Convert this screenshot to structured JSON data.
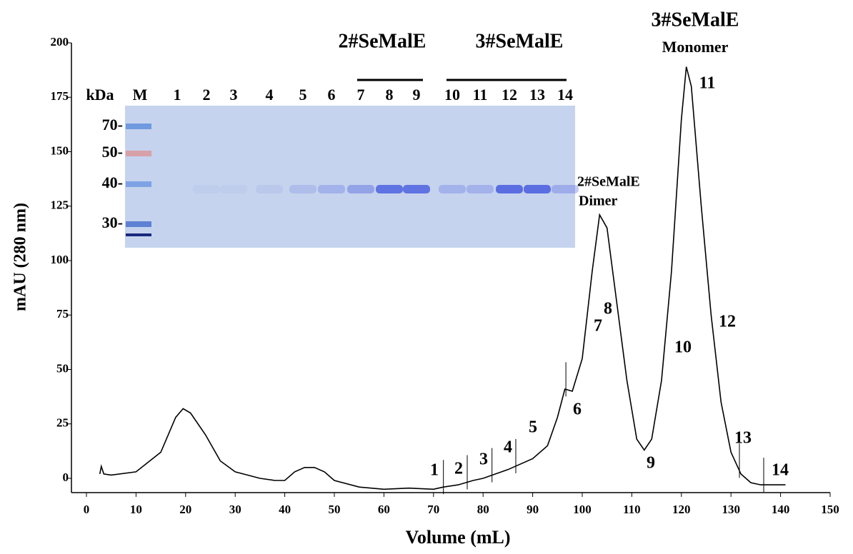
{
  "chart_data": {
    "type": "line",
    "xlabel": "Volume (mL)",
    "ylabel": "mAU (280 nm)",
    "xlim": [
      0,
      150
    ],
    "xticks": [
      0,
      10,
      20,
      30,
      40,
      50,
      60,
      70,
      80,
      90,
      100,
      110,
      120,
      130,
      140,
      150
    ],
    "ylim": [
      0,
      200
    ],
    "yticks": [
      0,
      25,
      50,
      75,
      100,
      125,
      150,
      175,
      200
    ],
    "color": "#000000",
    "x": [
      2.7,
      3.0,
      3.5,
      5,
      10,
      15,
      18,
      19.5,
      21,
      24,
      27,
      30,
      35,
      38,
      40,
      42,
      44,
      46,
      48,
      50,
      55,
      60,
      65,
      70,
      72,
      75,
      78,
      80,
      85,
      90,
      93,
      95,
      96.5,
      98,
      100,
      102,
      103.5,
      105,
      107,
      109,
      111,
      112.5,
      114,
      116,
      118,
      120,
      121,
      122,
      124,
      126,
      128,
      130,
      132,
      134,
      136,
      141
    ],
    "values": [
      2,
      5.5,
      2,
      1.5,
      3,
      12,
      28,
      32,
      30,
      20,
      8,
      3,
      0,
      -1,
      -1,
      3,
      5,
      5,
      3,
      -1,
      -4,
      -5,
      -4.5,
      -5,
      -4,
      -3,
      -1,
      0,
      4,
      9,
      15,
      28,
      41,
      40,
      55,
      95,
      121,
      115,
      80,
      45,
      18,
      13,
      18,
      45,
      95,
      165,
      189,
      180,
      125,
      75,
      35,
      12,
      2,
      -2,
      -3,
      -3
    ],
    "fraction_labels": [
      "1",
      "2",
      "3",
      "4",
      "5",
      "6",
      "7",
      "8",
      "9",
      "10",
      "11",
      "12",
      "13",
      "14"
    ],
    "fraction_marks": [
      72,
      76.8,
      81.8,
      86.6,
      96.7,
      131.7,
      136.6
    ],
    "annotations": [
      "3#SeMalE",
      "Monomer",
      "2#SeMalE",
      "Dimer"
    ],
    "gel": {
      "unit": "kDa",
      "lanes": [
        "M",
        "1",
        "2",
        "3",
        "4",
        "5",
        "6",
        "7",
        "8",
        "9",
        "10",
        "11",
        "12",
        "13",
        "14"
      ],
      "markers": [
        "70-",
        "50-",
        "40-",
        "30-"
      ],
      "groups": [
        "2#SeMalE",
        "3#SeMalE"
      ]
    }
  }
}
